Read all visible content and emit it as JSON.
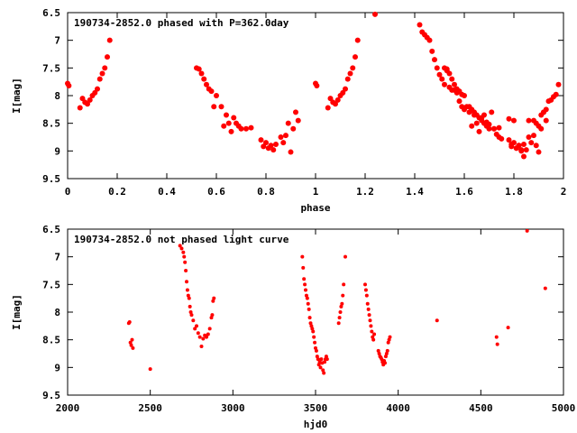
{
  "colors": {
    "points": "#ff0000",
    "axes": "#000000",
    "background": "#ffffff"
  },
  "chart_data": [
    {
      "type": "scatter",
      "title": "190734-2852.0 phased with P=362.0day",
      "xlabel": "phase",
      "ylabel": "I[mag]",
      "xlim": [
        0,
        2
      ],
      "ylim": [
        6.5,
        9.5
      ],
      "y_inverted": true,
      "grid": false,
      "xticks": [
        "0",
        "0.2",
        "0.4",
        "0.6",
        "0.8",
        "1",
        "1.2",
        "1.4",
        "1.6",
        "1.8",
        "2"
      ],
      "yticks": [
        "6.5",
        "7",
        "7.5",
        "8",
        "8.5",
        "9",
        "9.5"
      ],
      "x": [
        0.0,
        0.005,
        0.05,
        0.06,
        0.07,
        0.08,
        0.09,
        0.1,
        0.11,
        0.12,
        0.13,
        0.14,
        0.15,
        0.16,
        0.17,
        0.52,
        0.53,
        0.54,
        0.55,
        0.56,
        0.57,
        0.58,
        0.59,
        0.6,
        0.62,
        0.63,
        0.64,
        0.65,
        0.66,
        0.67,
        0.68,
        0.69,
        0.7,
        0.72,
        0.74,
        0.78,
        0.79,
        0.8,
        0.81,
        0.82,
        0.83,
        0.84,
        0.86,
        0.87,
        0.88,
        0.89,
        0.9,
        0.91,
        0.92,
        0.93,
        1.24,
        1.42,
        1.43,
        1.44,
        1.45,
        1.46,
        1.47,
        1.48,
        1.49,
        1.5,
        1.51,
        1.52,
        1.53,
        1.54,
        1.55,
        1.56,
        1.57,
        1.58,
        1.59,
        1.6,
        1.61,
        1.62,
        1.63,
        1.64,
        1.65,
        1.66,
        1.67,
        1.68,
        1.69,
        1.7,
        1.71,
        1.72,
        1.73,
        1.74,
        1.75,
        1.78,
        1.79,
        1.8,
        1.81,
        1.82,
        1.83,
        1.84,
        1.85,
        1.86,
        1.88,
        1.89,
        1.9,
        1.91,
        1.92,
        1.93,
        1.94,
        1.95,
        1.96,
        1.97,
        1.98
      ],
      "y": [
        7.78,
        7.82,
        8.22,
        8.05,
        8.12,
        8.15,
        8.08,
        8.0,
        7.95,
        7.88,
        7.7,
        7.6,
        7.5,
        7.3,
        7.0,
        7.5,
        7.52,
        7.6,
        7.7,
        7.8,
        7.88,
        7.92,
        8.2,
        8.0,
        8.2,
        8.55,
        8.35,
        8.5,
        8.65,
        8.4,
        8.5,
        8.55,
        8.6,
        8.6,
        8.58,
        8.8,
        8.92,
        8.85,
        8.95,
        8.9,
        8.98,
        8.88,
        8.75,
        8.85,
        8.72,
        8.5,
        9.02,
        8.6,
        8.3,
        8.45,
        6.53,
        6.72,
        6.85,
        6.9,
        6.95,
        7.0,
        7.2,
        7.35,
        7.5,
        7.62,
        7.7,
        7.8,
        7.55,
        7.85,
        7.9,
        7.9,
        7.95,
        8.1,
        7.98,
        8.25,
        8.2,
        8.3,
        8.25,
        8.3,
        8.35,
        8.4,
        8.45,
        8.35,
        8.48,
        8.52,
        8.3,
        8.6,
        8.7,
        8.75,
        8.78,
        8.42,
        8.88,
        8.45,
        8.95,
        8.9,
        9.0,
        9.1,
        8.98,
        8.45,
        8.45,
        8.9,
        8.55,
        8.35,
        8.3,
        8.25,
        8.1,
        8.08,
        8.02,
        7.98,
        7.8
      ],
      "mirror_x_offset": 1
    },
    {
      "type": "scatter",
      "title": "190734-2852.0 not phased light curve",
      "xlabel": "hjd0",
      "ylabel": "I[mag]",
      "xlim": [
        2000,
        5000
      ],
      "ylim": [
        6.5,
        9.5
      ],
      "y_inverted": true,
      "grid": false,
      "xticks": [
        "2000",
        "2500",
        "3000",
        "3500",
        "4000",
        "4500",
        "5000"
      ],
      "yticks": [
        "6.5",
        "7",
        "7.5",
        "8",
        "8.5",
        "9",
        "9.5"
      ],
      "x": [
        2370,
        2375,
        2380,
        2385,
        2390,
        2395,
        2500,
        2680,
        2690,
        2700,
        2705,
        2710,
        2715,
        2720,
        2725,
        2730,
        2735,
        2740,
        2745,
        2750,
        2760,
        2770,
        2780,
        2790,
        2800,
        2810,
        2820,
        2830,
        2840,
        2850,
        2860,
        2870,
        2875,
        2880,
        2885,
        3420,
        3425,
        3430,
        3435,
        3440,
        3445,
        3450,
        3455,
        3460,
        3465,
        3470,
        3475,
        3480,
        3485,
        3490,
        3495,
        3500,
        3505,
        3510,
        3515,
        3520,
        3525,
        3530,
        3535,
        3540,
        3545,
        3550,
        3555,
        3560,
        3565,
        3570,
        3640,
        3645,
        3650,
        3655,
        3660,
        3665,
        3670,
        3680,
        3800,
        3805,
        3810,
        3815,
        3820,
        3825,
        3830,
        3835,
        3840,
        3845,
        3850,
        3855,
        3880,
        3885,
        3890,
        3895,
        3900,
        3905,
        3910,
        3915,
        3920,
        3925,
        3930,
        3935,
        3940,
        3945,
        3950,
        4235,
        4595,
        4600,
        4665,
        4780,
        4890
      ],
      "y": [
        8.2,
        8.18,
        8.55,
        8.6,
        8.5,
        8.65,
        9.03,
        6.8,
        6.85,
        6.92,
        7.0,
        7.1,
        7.25,
        7.45,
        7.6,
        7.7,
        7.75,
        7.9,
        8.0,
        8.05,
        8.15,
        8.3,
        8.25,
        8.38,
        8.45,
        8.62,
        8.48,
        8.42,
        8.45,
        8.4,
        8.3,
        8.1,
        8.05,
        7.8,
        7.75,
        7.0,
        7.2,
        7.4,
        7.5,
        7.6,
        7.7,
        7.75,
        7.85,
        7.95,
        8.1,
        8.2,
        8.25,
        8.3,
        8.35,
        8.45,
        8.55,
        8.65,
        8.7,
        8.8,
        8.85,
        8.95,
        8.9,
        9.0,
        8.85,
        8.92,
        9.05,
        9.1,
        8.9,
        8.85,
        8.8,
        8.85,
        8.2,
        8.1,
        8.0,
        7.9,
        7.85,
        7.7,
        7.5,
        7.0,
        7.5,
        7.6,
        7.7,
        7.85,
        7.95,
        8.05,
        8.15,
        8.25,
        8.35,
        8.45,
        8.5,
        8.4,
        8.7,
        8.75,
        8.8,
        8.82,
        8.85,
        8.9,
        8.95,
        8.88,
        8.92,
        8.8,
        8.75,
        8.7,
        8.55,
        8.5,
        8.45,
        8.15,
        8.45,
        8.58,
        8.28,
        6.53,
        7.57
      ]
    }
  ]
}
